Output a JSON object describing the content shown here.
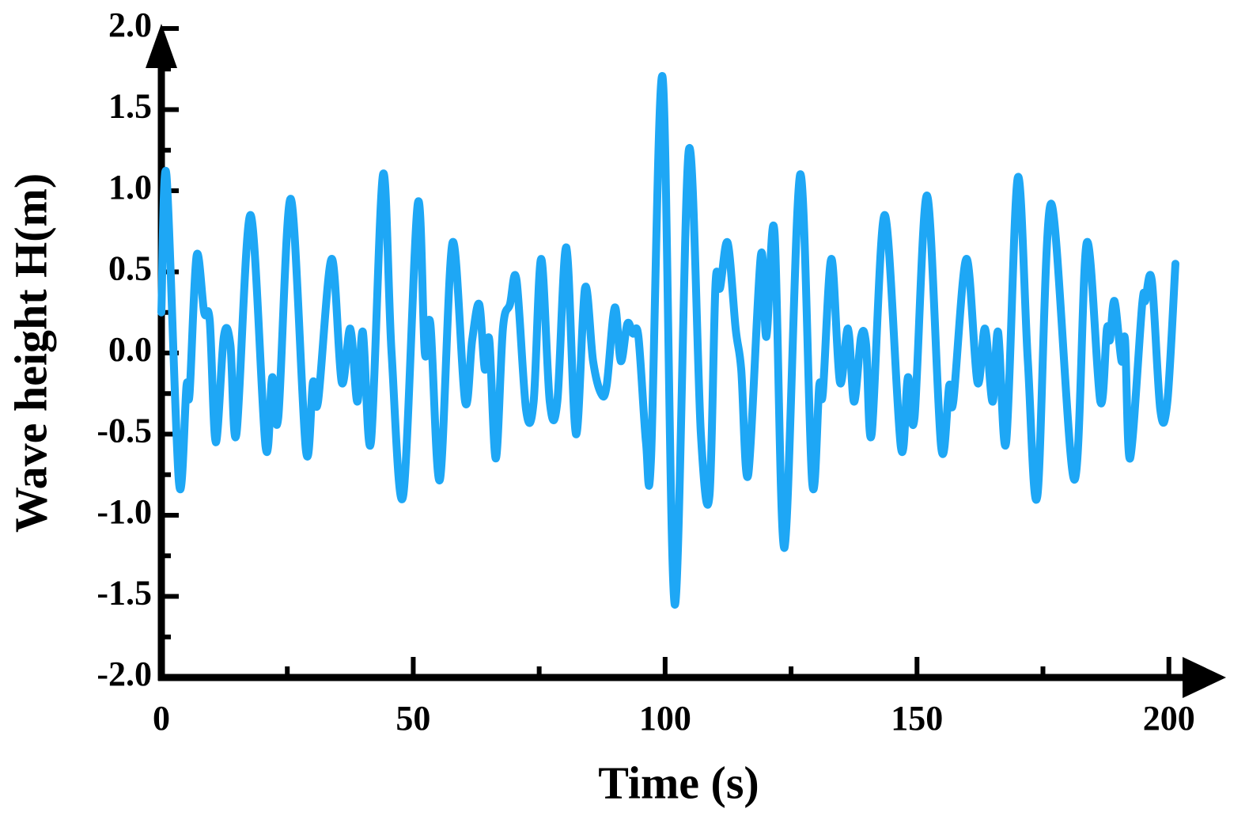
{
  "chart_data": {
    "type": "line",
    "x_label": "Time  (s)",
    "y_label": "Wave height H(m)",
    "color": "#1ea7f5",
    "x": [
      0,
      1,
      3.5,
      5,
      5.6,
      7,
      8.5,
      9.6,
      10.8,
      12.4,
      13.7,
      14.9,
      17.7,
      20.7,
      22,
      23.2,
      25.7,
      28.7,
      30.1,
      31.1,
      33.8,
      35.8,
      37.5,
      38.9,
      40,
      41.6,
      44,
      45.7,
      48,
      50.9,
      52.3,
      53.4,
      55.3,
      57.8,
      60.3,
      61.7,
      63.1,
      64.2,
      65.1,
      66.4,
      67.8,
      69.2,
      70.5,
      72.4,
      73.9,
      75.4,
      77.1,
      78.6,
      80.4,
      82.3,
      84.1,
      85.7,
      87.3,
      88.4,
      90,
      91.2,
      92.5,
      93.6,
      94.7,
      96.2,
      97.2,
      99.5,
      101.9,
      104.7,
      107.1,
      108.8,
      110,
      110.9,
      112.4,
      114,
      115.1,
      116.5,
      119,
      120.1,
      121.7,
      123.7,
      126.8,
      129.2,
      130.6,
      131.3,
      133,
      134.7,
      136.3,
      137.5,
      138.9,
      139.9,
      141,
      143.6,
      146.8,
      148.2,
      149.5,
      152,
      154.8,
      156.4,
      157.2,
      159.8,
      162,
      163.5,
      165,
      166.1,
      167.7,
      170,
      172,
      173.9,
      176.6,
      181.2,
      183.7,
      186.4,
      187.7,
      188.3,
      189.2,
      190.6,
      191.3,
      192.3,
      194.7,
      195.3,
      196.6,
      198.3,
      199.7,
      201.3
    ],
    "values": [
      0.25,
      1.1,
      -0.8,
      -0.2,
      -0.25,
      0.6,
      0.25,
      0.2,
      -0.55,
      0.1,
      0.05,
      -0.5,
      0.85,
      -0.58,
      -0.15,
      -0.4,
      0.95,
      -0.6,
      -0.18,
      -0.3,
      0.58,
      -0.18,
      0.15,
      -0.3,
      0.13,
      -0.55,
      1.1,
      0.0,
      -0.88,
      0.92,
      0.0,
      0.18,
      -0.78,
      0.68,
      -0.3,
      0.08,
      0.3,
      -0.1,
      0.08,
      -0.65,
      0.15,
      0.3,
      0.45,
      -0.35,
      -0.3,
      0.58,
      -0.3,
      -0.3,
      0.65,
      -0.5,
      0.4,
      -0.05,
      -0.25,
      -0.2,
      0.28,
      -0.05,
      0.18,
      0.12,
      0.1,
      -0.55,
      -0.65,
      1.7,
      -1.55,
      1.25,
      -0.5,
      -0.88,
      0.42,
      0.4,
      0.68,
      0.15,
      -0.1,
      -0.75,
      0.6,
      0.1,
      0.75,
      -1.2,
      1.1,
      -0.8,
      -0.2,
      -0.25,
      0.58,
      -0.18,
      0.15,
      -0.3,
      0.1,
      0.05,
      -0.5,
      0.85,
      -0.58,
      -0.15,
      -0.4,
      0.97,
      -0.58,
      -0.2,
      -0.3,
      0.58,
      -0.18,
      0.15,
      -0.3,
      0.13,
      -0.55,
      1.08,
      -0.05,
      -0.88,
      0.92,
      -0.78,
      0.68,
      -0.3,
      0.15,
      0.08,
      0.32,
      -0.05,
      0.08,
      -0.65,
      0.3,
      0.32,
      0.45,
      -0.35,
      -0.3,
      0.55
    ],
    "xlim": [
      0,
      203.5
    ],
    "ylim": [
      -2,
      2
    ],
    "xticks": [
      0,
      50,
      100,
      150,
      200
    ],
    "xminorticks": [
      25,
      75,
      125,
      175
    ],
    "yticks": [
      {
        "value": -2,
        "label": "-2.0"
      },
      -1.5,
      {
        "value": -1,
        "label": "-1.0"
      },
      -0.5,
      {
        "value": 0,
        "label": "0.0"
      },
      0.5,
      {
        "value": 1,
        "label": "1.0"
      },
      1.5,
      {
        "value": 2,
        "label": "2.0"
      }
    ],
    "yminorticks": [
      -1.75,
      -1.25,
      -0.75,
      -0.25,
      0.25,
      0.75,
      1.25,
      1.75
    ]
  }
}
